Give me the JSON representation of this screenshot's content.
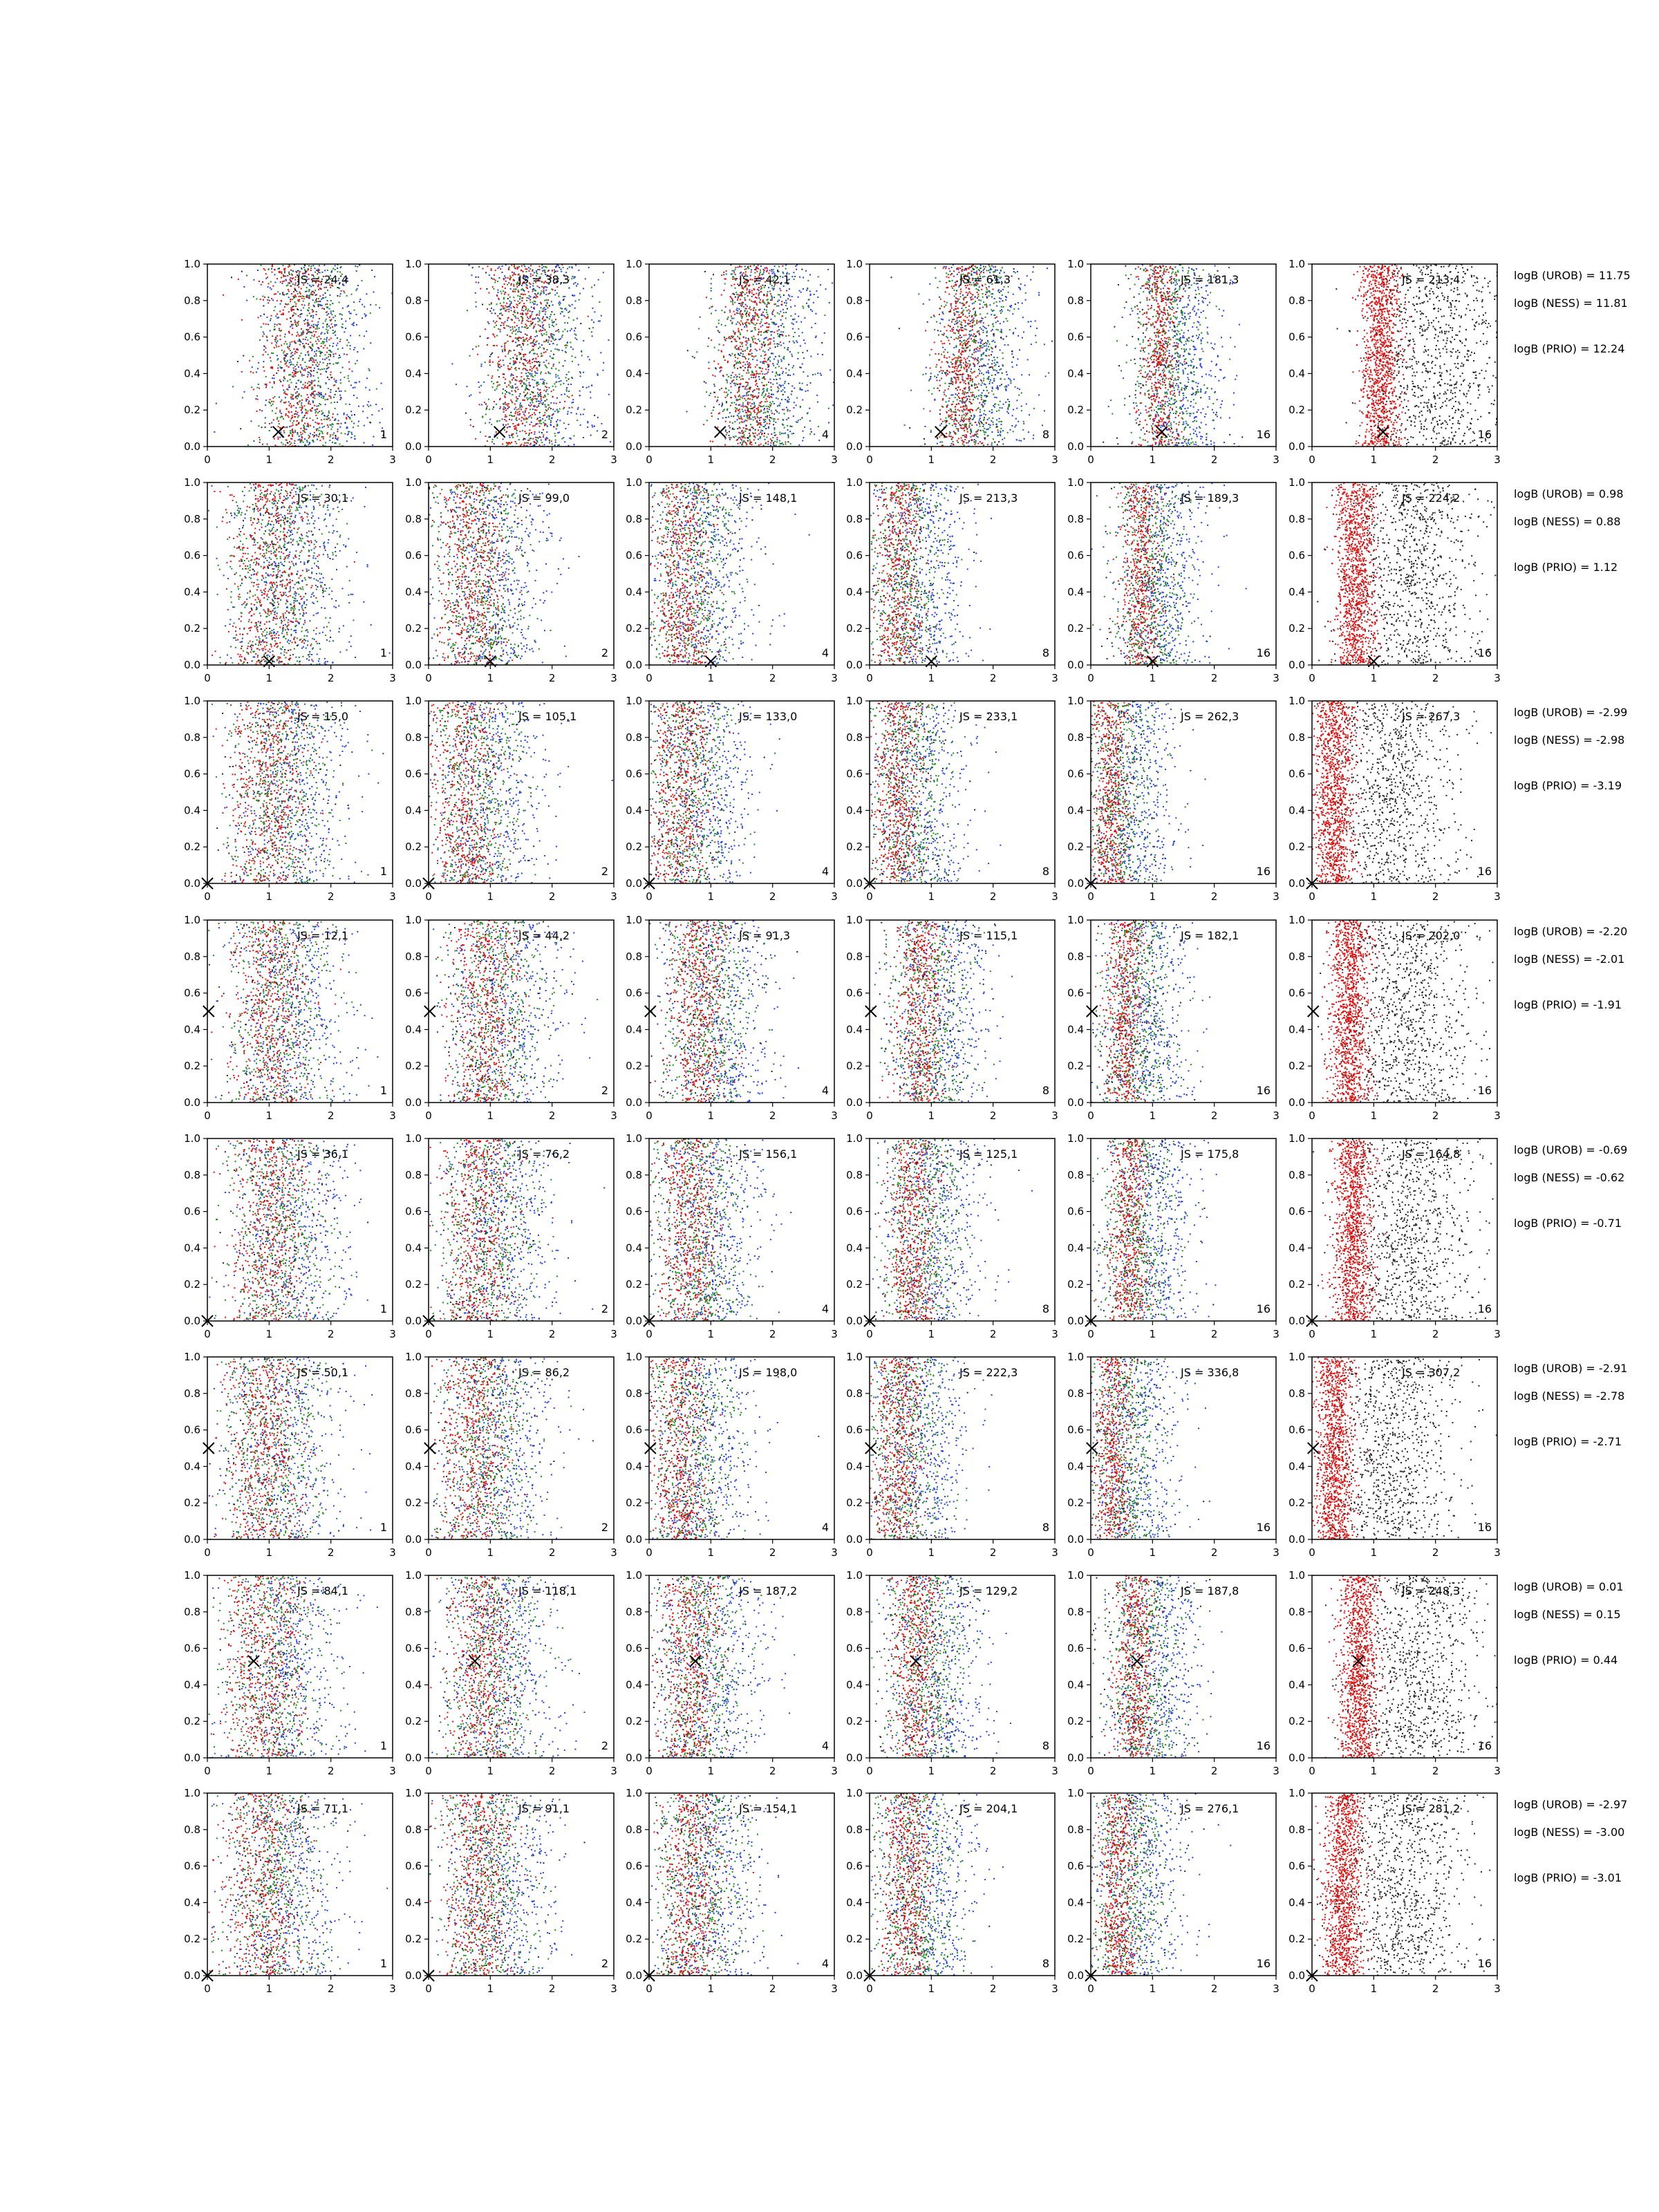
{
  "chart_data": {
    "type": "scatter",
    "layout": "8x6 grid of scatter panels",
    "xlim": [
      0,
      3
    ],
    "ylim": [
      0,
      1
    ],
    "xticks": [
      "0",
      "1",
      "2",
      "3"
    ],
    "yticks": [
      "0.0",
      "0.2",
      "0.4",
      "0.6",
      "0.8",
      "1.0"
    ],
    "panel_numbers": [
      "1",
      "2",
      "4",
      "8",
      "16",
      "16"
    ],
    "point_colors": [
      "#1f3fe0",
      "#1a8a1a",
      "#e01010",
      "#222222"
    ],
    "rows": [
      {
        "js": [
          "JS = 24,4",
          "JS = 38,3",
          "JS = 42,1",
          "JS = 61,3",
          "JS = 181,3",
          "JS = 213,4"
        ],
        "truth": [
          1.15,
          0.08
        ],
        "centers": [
          1.45,
          1.5,
          1.6,
          1.5,
          1.1,
          1.1
        ],
        "logB": [
          "logB (UROB) = 11.75",
          "logB (NESS) = 11.81",
          "logB (PRIO) = 12.24"
        ]
      },
      {
        "js": [
          "JS = 30,1",
          "JS = 99,0",
          "JS = 148,1",
          "JS = 213,3",
          "JS = 189,3",
          "JS = 224,2"
        ],
        "truth": [
          1.0,
          0.02
        ],
        "centers": [
          1.0,
          0.7,
          0.55,
          0.45,
          0.8,
          0.7
        ],
        "logB": [
          "logB (UROB) = 0.98",
          "logB (NESS) = 0.88",
          "logB (PRIO) = 1.12"
        ]
      },
      {
        "js": [
          "JS = 15,0",
          "JS = 105,1",
          "JS = 133,0",
          "JS = 233,1",
          "JS = 262,3",
          "JS = 267,3"
        ],
        "truth": [
          0.0,
          0.0
        ],
        "centers": [
          1.0,
          0.6,
          0.5,
          0.45,
          0.3,
          0.35
        ],
        "logB": [
          "logB (UROB) = -2.99",
          "logB (NESS) = -2.98",
          "logB (PRIO) = -3.19"
        ]
      },
      {
        "js": [
          "JS = 12,1",
          "JS = 44,2",
          "JS = 91,3",
          "JS = 115,1",
          "JS = 182,1",
          "JS = 202,0"
        ],
        "truth": [
          0.02,
          0.5
        ],
        "centers": [
          1.0,
          0.9,
          0.8,
          0.8,
          0.55,
          0.6
        ],
        "logB": [
          "logB (UROB) = -2.20",
          "logB (NESS) = -2.01",
          "logB (PRIO) = -1.91"
        ]
      },
      {
        "js": [
          "JS = 36,1",
          "JS = 76,2",
          "JS = 156,1",
          "JS = 125,1",
          "JS = 175,8",
          "JS = 164,8"
        ],
        "truth": [
          0.0,
          0.0
        ],
        "centers": [
          1.0,
          0.8,
          0.65,
          0.7,
          0.6,
          0.65
        ],
        "logB": [
          "logB (UROB) = -0.69",
          "logB (NESS) = -0.62",
          "logB (PRIO) = -0.71"
        ]
      },
      {
        "js": [
          "JS = 50,1",
          "JS = 86,2",
          "JS = 198,0",
          "JS = 222,3",
          "JS = 336,8",
          "JS = 307,2"
        ],
        "truth": [
          0.02,
          0.5
        ],
        "centers": [
          0.9,
          0.75,
          0.5,
          0.45,
          0.35,
          0.35
        ],
        "logB": [
          "logB (UROB) = -2.91",
          "logB (NESS) = -2.78",
          "logB (PRIO) = -2.71"
        ]
      },
      {
        "js": [
          "JS = 84,1",
          "JS = 118,1",
          "JS = 187,2",
          "JS = 129,2",
          "JS = 187,8",
          "JS = 248,3"
        ],
        "truth": [
          0.75,
          0.53
        ],
        "centers": [
          0.9,
          0.85,
          0.65,
          0.75,
          0.7,
          0.75
        ],
        "logB": [
          "logB (UROB) = 0.01",
          "logB (NESS) = 0.15",
          "logB (PRIO) = 0.44"
        ]
      },
      {
        "js": [
          "JS = 71,1",
          "JS = 91,1",
          "JS = 154,1",
          "JS = 204,1",
          "JS = 276,1",
          "JS = 281,2"
        ],
        "truth": [
          0.0,
          0.0
        ],
        "centers": [
          0.9,
          0.8,
          0.65,
          0.6,
          0.45,
          0.5
        ],
        "logB": [
          "logB (UROB) = -2.97",
          "logB (NESS) = -3.00",
          "logB (PRIO) = -3.01"
        ]
      }
    ]
  }
}
